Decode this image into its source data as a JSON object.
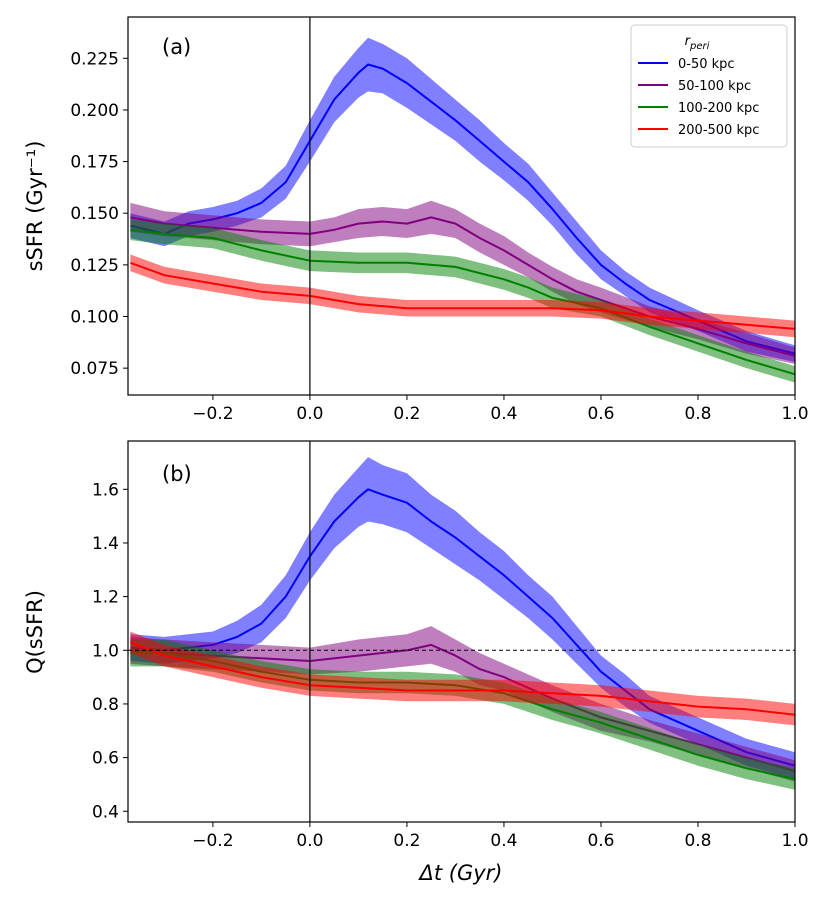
{
  "chart_data": [
    {
      "type": "line",
      "panel_label": "(a)",
      "ylabel": "sSFR (Gyr⁻¹)",
      "xlabel": "",
      "xlim": [
        -0.375,
        1.0
      ],
      "ylim": [
        0.062,
        0.245
      ],
      "xticks": [
        -0.2,
        0.0,
        0.2,
        0.4,
        0.6,
        0.8,
        1.0
      ],
      "xtick_labels": [
        "−0.2",
        "0.0",
        "0.2",
        "0.4",
        "0.6",
        "0.8",
        "1.0"
      ],
      "yticks": [
        0.075,
        0.1,
        0.125,
        0.15,
        0.175,
        0.2,
        0.225
      ],
      "ytick_labels": [
        "0.075",
        "0.100",
        "0.125",
        "0.150",
        "0.175",
        "0.200",
        "0.225"
      ],
      "vline_x": 0.0,
      "legend": {
        "title": "r_peri",
        "title_main": "r",
        "title_sub": "peri",
        "position": "top-right"
      },
      "series": [
        {
          "name": "0-50 kpc",
          "color": "#0000ff",
          "x": [
            -0.37,
            -0.3,
            -0.25,
            -0.2,
            -0.15,
            -0.1,
            -0.05,
            0.0,
            0.05,
            0.1,
            0.12,
            0.15,
            0.2,
            0.25,
            0.3,
            0.35,
            0.4,
            0.45,
            0.5,
            0.55,
            0.6,
            0.65,
            0.7,
            0.8,
            0.9,
            1.0
          ],
          "y": [
            0.144,
            0.14,
            0.145,
            0.147,
            0.15,
            0.155,
            0.165,
            0.185,
            0.205,
            0.218,
            0.222,
            0.22,
            0.213,
            0.204,
            0.195,
            0.185,
            0.175,
            0.165,
            0.152,
            0.138,
            0.125,
            0.116,
            0.108,
            0.098,
            0.088,
            0.082
          ],
          "err": [
            0.006,
            0.006,
            0.006,
            0.006,
            0.006,
            0.007,
            0.008,
            0.01,
            0.011,
            0.012,
            0.013,
            0.012,
            0.012,
            0.011,
            0.01,
            0.01,
            0.009,
            0.009,
            0.008,
            0.008,
            0.007,
            0.006,
            0.006,
            0.005,
            0.005,
            0.004
          ]
        },
        {
          "name": "50-100 kpc",
          "color": "#800080",
          "x": [
            -0.37,
            -0.3,
            -0.2,
            -0.1,
            0.0,
            0.05,
            0.1,
            0.15,
            0.2,
            0.25,
            0.3,
            0.35,
            0.4,
            0.45,
            0.5,
            0.55,
            0.6,
            0.7,
            0.8,
            0.9,
            1.0
          ],
          "y": [
            0.148,
            0.145,
            0.143,
            0.141,
            0.14,
            0.142,
            0.145,
            0.146,
            0.145,
            0.148,
            0.145,
            0.138,
            0.132,
            0.125,
            0.118,
            0.112,
            0.108,
            0.1,
            0.094,
            0.087,
            0.081
          ],
          "err": [
            0.007,
            0.006,
            0.006,
            0.006,
            0.006,
            0.006,
            0.007,
            0.007,
            0.007,
            0.008,
            0.007,
            0.007,
            0.007,
            0.006,
            0.006,
            0.006,
            0.006,
            0.005,
            0.005,
            0.005,
            0.004
          ]
        },
        {
          "name": "100-200 kpc",
          "color": "#008000",
          "x": [
            -0.37,
            -0.3,
            -0.2,
            -0.1,
            0.0,
            0.1,
            0.2,
            0.3,
            0.35,
            0.4,
            0.45,
            0.5,
            0.6,
            0.7,
            0.8,
            0.9,
            1.0
          ],
          "y": [
            0.142,
            0.14,
            0.138,
            0.132,
            0.127,
            0.126,
            0.126,
            0.124,
            0.121,
            0.118,
            0.114,
            0.109,
            0.104,
            0.095,
            0.087,
            0.079,
            0.072
          ],
          "err": [
            0.005,
            0.005,
            0.005,
            0.005,
            0.005,
            0.005,
            0.005,
            0.005,
            0.005,
            0.005,
            0.005,
            0.005,
            0.004,
            0.004,
            0.004,
            0.004,
            0.004
          ]
        },
        {
          "name": "200-500 kpc",
          "color": "#ff0000",
          "x": [
            -0.37,
            -0.3,
            -0.2,
            -0.1,
            0.0,
            0.1,
            0.2,
            0.3,
            0.4,
            0.5,
            0.6,
            0.7,
            0.8,
            0.9,
            1.0
          ],
          "y": [
            0.126,
            0.12,
            0.116,
            0.112,
            0.11,
            0.106,
            0.104,
            0.104,
            0.104,
            0.104,
            0.103,
            0.1,
            0.098,
            0.096,
            0.094
          ],
          "err": [
            0.004,
            0.004,
            0.004,
            0.004,
            0.004,
            0.004,
            0.004,
            0.004,
            0.004,
            0.004,
            0.004,
            0.004,
            0.004,
            0.004,
            0.004
          ]
        }
      ]
    },
    {
      "type": "line",
      "panel_label": "(b)",
      "ylabel": "Q(sSFR)",
      "xlabel": "Δt (Gyr)",
      "xlim": [
        -0.375,
        1.0
      ],
      "ylim": [
        0.36,
        1.78
      ],
      "xticks": [
        -0.2,
        0.0,
        0.2,
        0.4,
        0.6,
        0.8,
        1.0
      ],
      "xtick_labels": [
        "−0.2",
        "0.0",
        "0.2",
        "0.4",
        "0.6",
        "0.8",
        "1.0"
      ],
      "yticks": [
        0.4,
        0.6,
        0.8,
        1.0,
        1.2,
        1.4,
        1.6
      ],
      "ytick_labels": [
        "0.4",
        "0.6",
        "0.8",
        "1.0",
        "1.2",
        "1.4",
        "1.6"
      ],
      "vline_x": 0.0,
      "hline_y": 1.0,
      "series": [
        {
          "name": "0-50 kpc",
          "color": "#0000ff",
          "x": [
            -0.37,
            -0.3,
            -0.2,
            -0.15,
            -0.1,
            -0.05,
            0.0,
            0.05,
            0.1,
            0.12,
            0.15,
            0.2,
            0.25,
            0.3,
            0.35,
            0.4,
            0.45,
            0.5,
            0.55,
            0.6,
            0.65,
            0.7,
            0.8,
            0.9,
            1.0
          ],
          "y": [
            1.01,
            1.0,
            1.02,
            1.05,
            1.1,
            1.2,
            1.35,
            1.48,
            1.57,
            1.6,
            1.58,
            1.55,
            1.48,
            1.42,
            1.35,
            1.28,
            1.2,
            1.12,
            1.02,
            0.92,
            0.85,
            0.78,
            0.7,
            0.62,
            0.57
          ],
          "err": [
            0.05,
            0.05,
            0.05,
            0.06,
            0.07,
            0.08,
            0.09,
            0.1,
            0.11,
            0.12,
            0.11,
            0.11,
            0.1,
            0.1,
            0.09,
            0.09,
            0.08,
            0.08,
            0.07,
            0.06,
            0.06,
            0.05,
            0.05,
            0.05,
            0.05
          ]
        },
        {
          "name": "50-100 kpc",
          "color": "#800080",
          "x": [
            -0.37,
            -0.3,
            -0.2,
            -0.1,
            0.0,
            0.1,
            0.2,
            0.25,
            0.3,
            0.35,
            0.4,
            0.5,
            0.6,
            0.7,
            0.8,
            0.9,
            1.0
          ],
          "y": [
            1.0,
            0.99,
            0.98,
            0.97,
            0.96,
            0.98,
            1.0,
            1.02,
            0.98,
            0.93,
            0.9,
            0.82,
            0.75,
            0.7,
            0.65,
            0.6,
            0.55
          ],
          "err": [
            0.05,
            0.05,
            0.05,
            0.05,
            0.05,
            0.06,
            0.06,
            0.07,
            0.06,
            0.06,
            0.05,
            0.05,
            0.05,
            0.04,
            0.04,
            0.04,
            0.04
          ]
        },
        {
          "name": "100-200 kpc",
          "color": "#008000",
          "x": [
            -0.37,
            -0.3,
            -0.2,
            -0.1,
            0.0,
            0.1,
            0.2,
            0.3,
            0.4,
            0.5,
            0.6,
            0.7,
            0.8,
            0.9,
            1.0
          ],
          "y": [
            0.99,
            0.99,
            0.96,
            0.92,
            0.89,
            0.88,
            0.88,
            0.87,
            0.84,
            0.78,
            0.73,
            0.67,
            0.61,
            0.56,
            0.52
          ],
          "err": [
            0.05,
            0.05,
            0.04,
            0.04,
            0.04,
            0.04,
            0.04,
            0.04,
            0.04,
            0.04,
            0.04,
            0.04,
            0.04,
            0.04,
            0.04
          ]
        },
        {
          "name": "200-500 kpc",
          "color": "#ff0000",
          "x": [
            -0.37,
            -0.3,
            -0.2,
            -0.1,
            0.0,
            0.1,
            0.2,
            0.3,
            0.4,
            0.5,
            0.6,
            0.7,
            0.8,
            0.9,
            1.0
          ],
          "y": [
            1.03,
            0.98,
            0.94,
            0.9,
            0.87,
            0.86,
            0.85,
            0.85,
            0.85,
            0.84,
            0.83,
            0.81,
            0.79,
            0.78,
            0.76
          ],
          "err": [
            0.04,
            0.04,
            0.04,
            0.04,
            0.04,
            0.04,
            0.04,
            0.04,
            0.04,
            0.04,
            0.04,
            0.04,
            0.04,
            0.04,
            0.04
          ]
        }
      ]
    }
  ]
}
